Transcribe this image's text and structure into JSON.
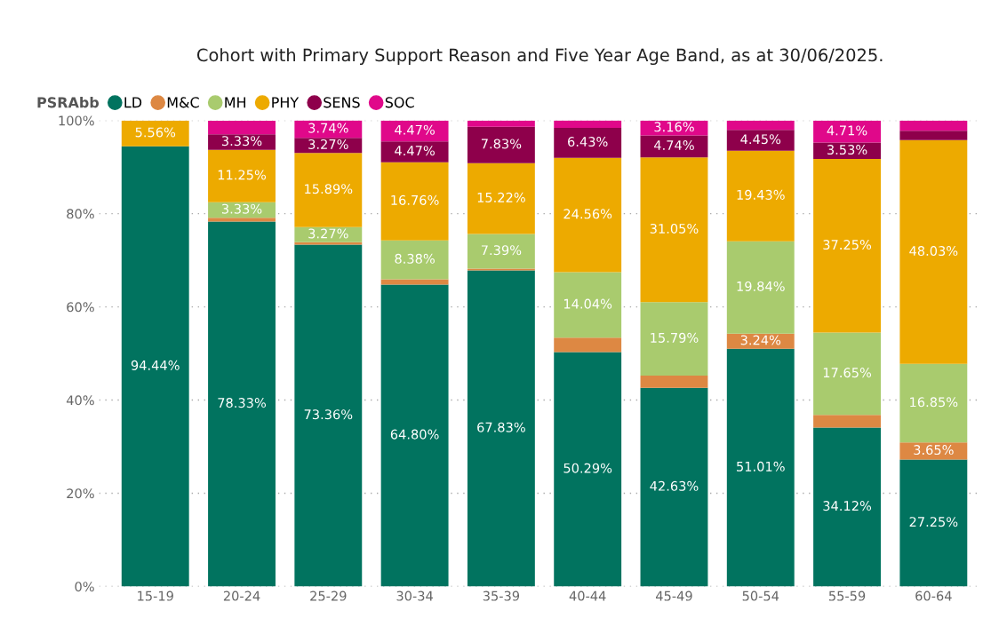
{
  "chart_data": {
    "type": "bar",
    "title": "Cohort with Primary Support Reason and Five Year Age Band, as at 30/06/2025.",
    "categories": [
      "15-19",
      "20-24",
      "25-29",
      "30-34",
      "35-39",
      "40-44",
      "45-49",
      "50-54",
      "55-59",
      "60-64"
    ],
    "stacked": true,
    "legend_title": "PSRAbb",
    "legend": "top left",
    "grid": "y",
    "ylim": [
      0,
      100
    ],
    "yticks": [
      {
        "value": 0,
        "label": "0%"
      },
      {
        "value": 20,
        "label": "20%"
      },
      {
        "value": 40,
        "label": "40%"
      },
      {
        "value": 60,
        "label": "60%"
      },
      {
        "value": 80,
        "label": "80%"
      },
      {
        "value": 100,
        "label": "100%"
      }
    ],
    "series": [
      {
        "name": "LD",
        "color": "#01735f",
        "values": [
          94.44,
          78.33,
          73.36,
          64.8,
          67.83,
          50.29,
          42.63,
          51.01,
          34.12,
          27.25
        ],
        "value_labels": [
          "94.44%",
          "78.33%",
          "73.36%",
          "64.80%",
          "67.83%",
          "50.29%",
          "42.63%",
          "51.01%",
          "34.12%",
          "27.25%"
        ]
      },
      {
        "name": "M&C",
        "color": "#dd8843",
        "values": [
          0,
          0.8,
          0.5,
          1.1,
          0.4,
          3.1,
          2.6,
          3.24,
          2.7,
          3.65
        ],
        "value_labels": [
          null,
          null,
          null,
          null,
          null,
          null,
          null,
          "3.24%",
          null,
          "3.65%"
        ]
      },
      {
        "name": "MH",
        "color": "#a9cb6e",
        "values": [
          0,
          3.33,
          3.27,
          8.38,
          7.39,
          14.04,
          15.79,
          19.84,
          17.65,
          16.85
        ],
        "value_labels": [
          null,
          "3.33%",
          "3.27%",
          "8.38%",
          "7.39%",
          "14.04%",
          "15.79%",
          "19.84%",
          "17.65%",
          "16.85%"
        ]
      },
      {
        "name": "PHY",
        "color": "#edaa00",
        "values": [
          5.56,
          11.25,
          15.89,
          16.76,
          15.22,
          24.56,
          31.05,
          19.43,
          37.25,
          48.03
        ],
        "value_labels": [
          "5.56%",
          "11.25%",
          "15.89%",
          "16.76%",
          "15.22%",
          "24.56%",
          "31.05%",
          "19.43%",
          "37.25%",
          "48.03%"
        ]
      },
      {
        "name": "SENS",
        "color": "#8e004b",
        "values": [
          0,
          3.33,
          3.27,
          4.47,
          7.83,
          6.43,
          4.74,
          4.45,
          3.53,
          2.0
        ],
        "value_labels": [
          null,
          "3.33%",
          "3.27%",
          "4.47%",
          "7.83%",
          "6.43%",
          "4.74%",
          "4.45%",
          "3.53%",
          null
        ]
      },
      {
        "name": "SOC",
        "color": "#e0088a",
        "values": [
          0,
          2.9,
          3.74,
          4.47,
          1.3,
          1.6,
          3.16,
          2.0,
          4.71,
          2.2
        ],
        "value_labels": [
          null,
          null,
          "3.74%",
          "4.47%",
          null,
          null,
          "3.16%",
          null,
          "4.71%",
          null
        ]
      }
    ]
  }
}
